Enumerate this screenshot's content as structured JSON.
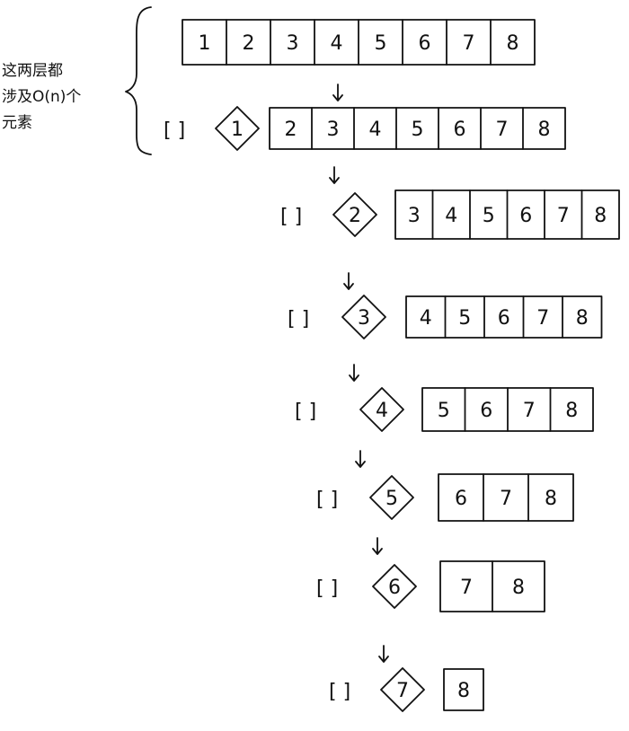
{
  "annotation": {
    "lines": [
      "这两层都",
      "涉及O(n)个",
      "元素"
    ]
  },
  "levels": [
    {
      "empty": "[ ]",
      "pivot": null,
      "array": [
        "1",
        "2",
        "3",
        "4",
        "5",
        "6",
        "7",
        "8"
      ]
    },
    {
      "empty": "[ ]",
      "pivot": "1",
      "array": [
        "2",
        "3",
        "4",
        "5",
        "6",
        "7",
        "8"
      ]
    },
    {
      "empty": "[ ]",
      "pivot": "2",
      "array": [
        "3",
        "4",
        "5",
        "6",
        "7",
        "8"
      ]
    },
    {
      "empty": "[ ]",
      "pivot": "3",
      "array": [
        "4",
        "5",
        "6",
        "7",
        "8"
      ]
    },
    {
      "empty": "[ ]",
      "pivot": "4",
      "array": [
        "5",
        "6",
        "7",
        "8"
      ]
    },
    {
      "empty": "[ ]",
      "pivot": "5",
      "array": [
        "6",
        "7",
        "8"
      ]
    },
    {
      "empty": "[ ]",
      "pivot": "6",
      "array": [
        "7",
        "8"
      ]
    },
    {
      "empty": "[ ]",
      "pivot": "7",
      "array": [
        "8"
      ]
    }
  ]
}
